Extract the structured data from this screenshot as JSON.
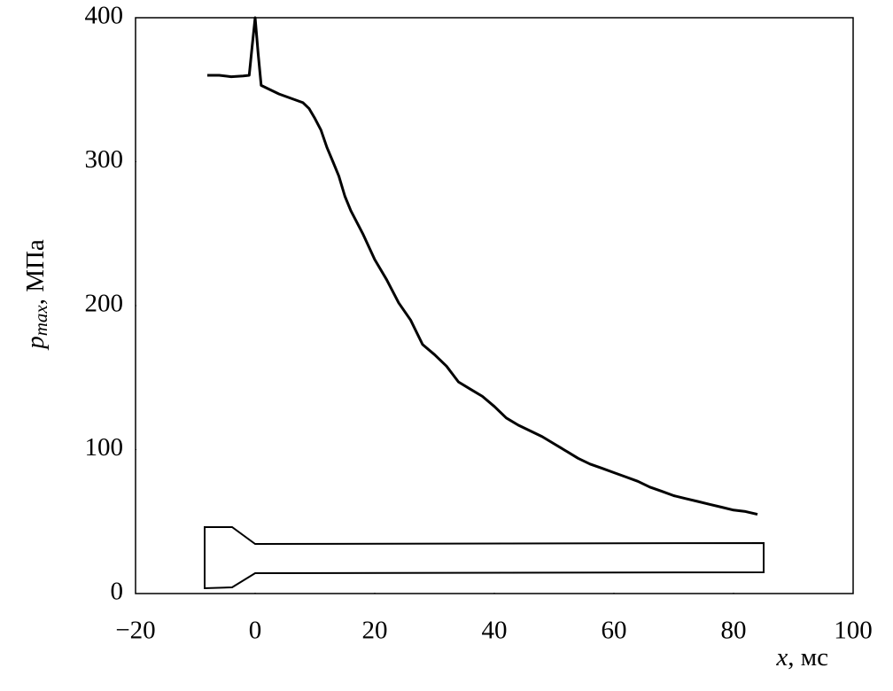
{
  "chart_data": {
    "type": "line",
    "ylabel": [
      "p",
      "max",
      ", МПа"
    ],
    "xlabel": [
      "x",
      ", мс"
    ],
    "x": [
      -8,
      -6,
      -4,
      -2,
      -1,
      -0.5,
      0,
      0.5,
      1,
      2,
      4,
      6,
      8,
      9,
      10,
      11,
      12,
      13,
      14,
      15,
      16,
      18,
      20,
      22,
      24,
      26,
      28,
      30,
      32,
      34,
      36,
      38,
      40,
      42,
      44,
      46,
      48,
      50,
      52,
      54,
      56,
      58,
      60,
      62,
      64,
      66,
      68,
      70,
      72,
      74,
      76,
      78,
      80,
      82,
      84
    ],
    "values": [
      360,
      360,
      359,
      359.5,
      360,
      380,
      400,
      375,
      353,
      351,
      347,
      344,
      341,
      337,
      330,
      322,
      310,
      300,
      290,
      276,
      266,
      250,
      232,
      218,
      202,
      190,
      173,
      166,
      158,
      147,
      142,
      137,
      130,
      122,
      117,
      113,
      109,
      104,
      99,
      94,
      90,
      87,
      84,
      81,
      78,
      74,
      71,
      68,
      66,
      64,
      62,
      60,
      58,
      57,
      55
    ],
    "color": "#000000",
    "xlim": [
      -20,
      100
    ],
    "ylim": [
      0,
      400
    ],
    "xticks": [
      {
        "value": -20,
        "label": "−20"
      },
      0,
      20,
      40,
      60,
      80,
      100
    ],
    "yticks": [
      0,
      100,
      200,
      300,
      400
    ],
    "grid": false
  }
}
